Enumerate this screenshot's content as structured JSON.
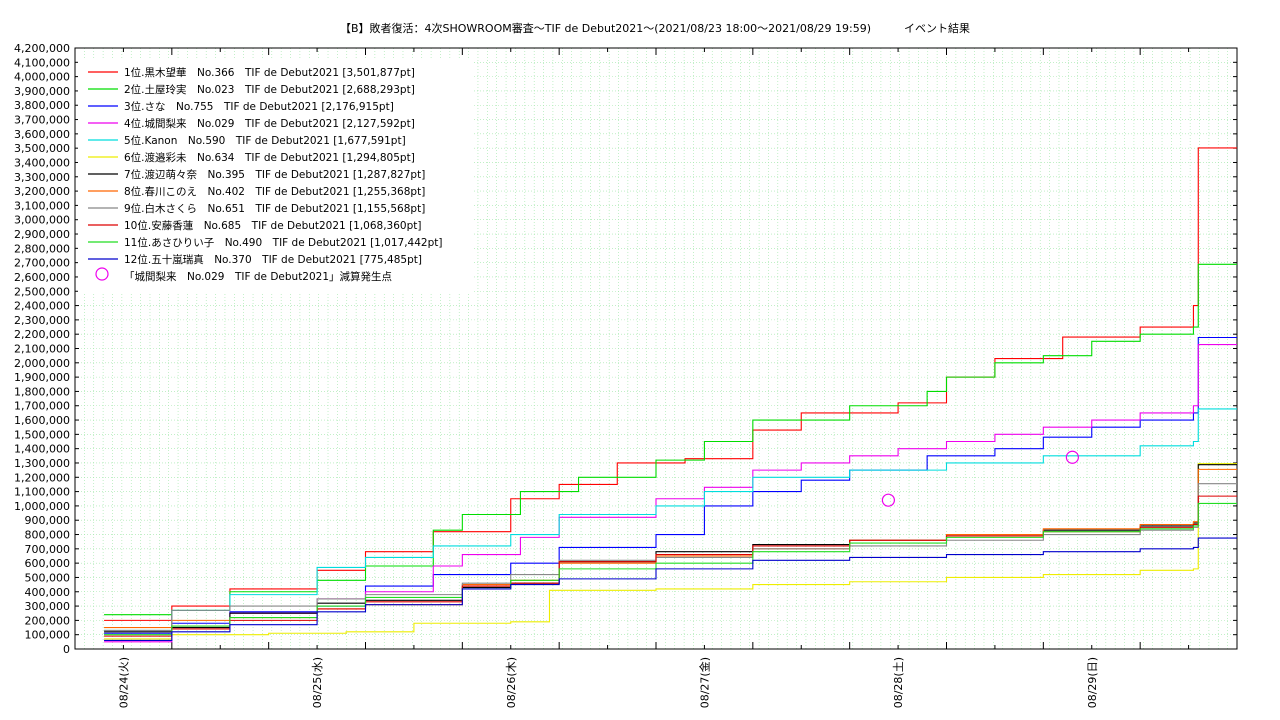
{
  "chart_data": {
    "type": "line",
    "title": "【B】敗者復活：4次SHOWROOM審査〜TIF de Debut2021〜(2021/08/23 18:00〜2021/08/29 19:59)　　　イベント結果",
    "xlabel": "",
    "ylabel": "",
    "xlim": [
      "2021-08-23 18:00",
      "2021-08-29 20:00"
    ],
    "ylim": [
      0,
      4200000
    ],
    "y_ticks": [
      "0",
      "100,000",
      "200,000",
      "300,000",
      "400,000",
      "500,000",
      "600,000",
      "700,000",
      "800,000",
      "900,000",
      "1,000,000",
      "1,100,000",
      "1,200,000",
      "1,300,000",
      "1,400,000",
      "1,500,000",
      "1,600,000",
      "1,700,000",
      "1,800,000",
      "1,900,000",
      "2,000,000",
      "2,100,000",
      "2,200,000",
      "2,300,000",
      "2,400,000",
      "2,500,000",
      "2,600,000",
      "2,700,000",
      "2,800,000",
      "2,900,000",
      "3,000,000",
      "3,100,000",
      "3,200,000",
      "3,300,000",
      "3,400,000",
      "3,500,000",
      "3,600,000",
      "3,700,000",
      "3,800,000",
      "3,900,000",
      "4,000,000",
      "4,100,000",
      "4,200,000"
    ],
    "x_ticks": [
      "08/24(火)",
      "08/25(水)",
      "08/26(木)",
      "08/27(金)",
      "08/28(土)",
      "08/29(日)"
    ],
    "grid": true,
    "legend_position": "top-left",
    "series": [
      {
        "name": "1位.黒木望華　No.366　TIF de Debut2021 [3,501,877pt]",
        "color": "#ff0000",
        "points": [
          [
            0.3,
            200000
          ],
          [
            1.0,
            300000
          ],
          [
            1.6,
            420000
          ],
          [
            2.5,
            550000
          ],
          [
            3.0,
            680000
          ],
          [
            3.7,
            820000
          ],
          [
            4.5,
            1050000
          ],
          [
            5.0,
            1150000
          ],
          [
            5.6,
            1300000
          ],
          [
            6.3,
            1330000
          ],
          [
            7.0,
            1530000
          ],
          [
            7.5,
            1650000
          ],
          [
            8.5,
            1720000
          ],
          [
            9.0,
            1900000
          ],
          [
            9.5,
            2030000
          ],
          [
            10.2,
            2180000
          ],
          [
            11.0,
            2250000
          ],
          [
            11.55,
            2400000
          ],
          [
            11.6,
            3501877
          ]
        ]
      },
      {
        "name": "2位.土屋玲実　No.023　TIF de Debut2021 [2,688,293pt]",
        "color": "#00dd00",
        "points": [
          [
            0.3,
            240000
          ],
          [
            1.0,
            270000
          ],
          [
            1.6,
            400000
          ],
          [
            2.5,
            480000
          ],
          [
            3.0,
            580000
          ],
          [
            3.7,
            830000
          ],
          [
            4.0,
            940000
          ],
          [
            4.6,
            1100000
          ],
          [
            5.2,
            1200000
          ],
          [
            6.0,
            1320000
          ],
          [
            6.5,
            1450000
          ],
          [
            7.0,
            1600000
          ],
          [
            8.0,
            1700000
          ],
          [
            8.8,
            1800000
          ],
          [
            9.0,
            1900000
          ],
          [
            9.5,
            2000000
          ],
          [
            10.0,
            2050000
          ],
          [
            10.5,
            2150000
          ],
          [
            11.0,
            2200000
          ],
          [
            11.55,
            2250000
          ],
          [
            11.6,
            2688293
          ]
        ]
      },
      {
        "name": "3位.さな　No.755　TIF de Debut2021 [2,176,915pt]",
        "color": "#0000ff",
        "points": [
          [
            0.3,
            110000
          ],
          [
            1.0,
            180000
          ],
          [
            1.6,
            260000
          ],
          [
            2.5,
            300000
          ],
          [
            3.0,
            440000
          ],
          [
            3.7,
            520000
          ],
          [
            4.5,
            600000
          ],
          [
            5.0,
            710000
          ],
          [
            6.0,
            800000
          ],
          [
            6.5,
            1000000
          ],
          [
            7.0,
            1100000
          ],
          [
            7.5,
            1180000
          ],
          [
            8.0,
            1250000
          ],
          [
            8.8,
            1350000
          ],
          [
            9.5,
            1400000
          ],
          [
            10.0,
            1480000
          ],
          [
            10.5,
            1550000
          ],
          [
            11.0,
            1600000
          ],
          [
            11.55,
            1650000
          ],
          [
            11.6,
            2176915
          ]
        ]
      },
      {
        "name": "4位.城間梨来　No.029　TIF de Debut2021 [2,127,592pt]",
        "color": "#ee00ee",
        "points": [
          [
            0.3,
            50000
          ],
          [
            1.0,
            160000
          ],
          [
            1.6,
            250000
          ],
          [
            2.5,
            350000
          ],
          [
            3.0,
            400000
          ],
          [
            3.7,
            580000
          ],
          [
            4.0,
            660000
          ],
          [
            4.6,
            780000
          ],
          [
            5.0,
            920000
          ],
          [
            6.0,
            1050000
          ],
          [
            6.5,
            1130000
          ],
          [
            7.0,
            1250000
          ],
          [
            7.5,
            1300000
          ],
          [
            8.0,
            1350000
          ],
          [
            8.5,
            1400000
          ],
          [
            9.0,
            1450000
          ],
          [
            9.5,
            1500000
          ],
          [
            10.0,
            1550000
          ],
          [
            10.5,
            1600000
          ],
          [
            11.0,
            1650000
          ],
          [
            11.55,
            1700000
          ],
          [
            11.6,
            2127592
          ]
        ]
      },
      {
        "name": "5位.Kanon　No.590　TIF de Debut2021 [1,677,591pt]",
        "color": "#00dddd",
        "points": [
          [
            0.3,
            130000
          ],
          [
            1.0,
            270000
          ],
          [
            1.6,
            380000
          ],
          [
            2.5,
            570000
          ],
          [
            3.0,
            640000
          ],
          [
            3.7,
            720000
          ],
          [
            4.5,
            800000
          ],
          [
            5.0,
            940000
          ],
          [
            6.0,
            1000000
          ],
          [
            6.5,
            1100000
          ],
          [
            7.0,
            1200000
          ],
          [
            8.0,
            1250000
          ],
          [
            9.0,
            1300000
          ],
          [
            10.0,
            1350000
          ],
          [
            11.0,
            1420000
          ],
          [
            11.55,
            1450000
          ],
          [
            11.6,
            1677591
          ]
        ]
      },
      {
        "name": "6位.渡邉彩未　No.634　TIF de Debut2021 [1,294,805pt]",
        "color": "#eeee00",
        "points": [
          [
            0.3,
            70000
          ],
          [
            1.0,
            100000
          ],
          [
            2.0,
            110000
          ],
          [
            2.8,
            120000
          ],
          [
            3.5,
            180000
          ],
          [
            4.5,
            190000
          ],
          [
            4.9,
            410000
          ],
          [
            6.0,
            420000
          ],
          [
            7.0,
            450000
          ],
          [
            8.0,
            470000
          ],
          [
            9.0,
            500000
          ],
          [
            10.0,
            520000
          ],
          [
            11.0,
            550000
          ],
          [
            11.55,
            560000
          ],
          [
            11.6,
            1294805
          ]
        ]
      },
      {
        "name": "7位.渡辺萌々奈　No.395　TIF de Debut2021 [1,287,827pt]",
        "color": "#000000",
        "points": [
          [
            0.3,
            120000
          ],
          [
            1.0,
            150000
          ],
          [
            1.6,
            250000
          ],
          [
            2.5,
            320000
          ],
          [
            3.0,
            340000
          ],
          [
            4.0,
            430000
          ],
          [
            4.5,
            460000
          ],
          [
            5.0,
            610000
          ],
          [
            6.0,
            680000
          ],
          [
            7.0,
            730000
          ],
          [
            8.0,
            760000
          ],
          [
            9.0,
            800000
          ],
          [
            10.0,
            830000
          ],
          [
            11.0,
            860000
          ],
          [
            11.55,
            880000
          ],
          [
            11.6,
            1287827
          ]
        ]
      },
      {
        "name": "8位.春川このえ　No.402　TIF de Debut2021 [1,255,368pt]",
        "color": "#ff6600",
        "points": [
          [
            0.3,
            150000
          ],
          [
            1.0,
            200000
          ],
          [
            1.6,
            220000
          ],
          [
            2.5,
            280000
          ],
          [
            3.0,
            310000
          ],
          [
            4.0,
            450000
          ],
          [
            4.5,
            480000
          ],
          [
            5.0,
            600000
          ],
          [
            6.0,
            650000
          ],
          [
            7.0,
            700000
          ],
          [
            8.0,
            760000
          ],
          [
            9.0,
            800000
          ],
          [
            10.0,
            840000
          ],
          [
            11.0,
            870000
          ],
          [
            11.55,
            890000
          ],
          [
            11.6,
            1255368
          ]
        ]
      },
      {
        "name": "9位.白木さくら　No.651　TIF de Debut2021 [1,155,568pt]",
        "color": "#888888",
        "points": [
          [
            0.3,
            130000
          ],
          [
            1.0,
            270000
          ],
          [
            1.6,
            300000
          ],
          [
            2.5,
            350000
          ],
          [
            3.0,
            380000
          ],
          [
            4.0,
            460000
          ],
          [
            4.5,
            520000
          ],
          [
            5.0,
            620000
          ],
          [
            6.0,
            640000
          ],
          [
            7.0,
            700000
          ],
          [
            8.0,
            720000
          ],
          [
            9.0,
            760000
          ],
          [
            10.0,
            800000
          ],
          [
            11.0,
            830000
          ],
          [
            11.55,
            850000
          ],
          [
            11.6,
            1155568
          ]
        ]
      },
      {
        "name": "10位.安藤香蓮　No.685　TIF de Debut2021 [1,068,360pt]",
        "color": "#dd0000",
        "points": [
          [
            0.3,
            90000
          ],
          [
            1.0,
            140000
          ],
          [
            1.6,
            200000
          ],
          [
            2.5,
            280000
          ],
          [
            3.0,
            330000
          ],
          [
            4.0,
            440000
          ],
          [
            4.5,
            460000
          ],
          [
            5.0,
            610000
          ],
          [
            6.0,
            660000
          ],
          [
            7.0,
            720000
          ],
          [
            8.0,
            760000
          ],
          [
            9.0,
            790000
          ],
          [
            10.0,
            820000
          ],
          [
            11.0,
            850000
          ],
          [
            11.55,
            870000
          ],
          [
            11.6,
            1068360
          ]
        ]
      },
      {
        "name": "11位.あさひりい子　No.490　TIF de Debut2021 [1,017,442pt]",
        "color": "#22dd22",
        "points": [
          [
            0.3,
            100000
          ],
          [
            1.0,
            160000
          ],
          [
            1.6,
            220000
          ],
          [
            2.5,
            300000
          ],
          [
            3.0,
            360000
          ],
          [
            4.0,
            420000
          ],
          [
            4.5,
            480000
          ],
          [
            5.0,
            560000
          ],
          [
            6.0,
            600000
          ],
          [
            7.0,
            680000
          ],
          [
            8.0,
            740000
          ],
          [
            9.0,
            780000
          ],
          [
            10.0,
            820000
          ],
          [
            11.0,
            840000
          ],
          [
            11.55,
            860000
          ],
          [
            11.6,
            1017442
          ]
        ]
      },
      {
        "name": "12位.五十嵐瑞真　No.370　TIF de Debut2021 [775,485pt]",
        "color": "#0000cc",
        "points": [
          [
            0.3,
            60000
          ],
          [
            1.0,
            120000
          ],
          [
            1.6,
            170000
          ],
          [
            2.5,
            260000
          ],
          [
            3.0,
            310000
          ],
          [
            4.0,
            420000
          ],
          [
            4.5,
            450000
          ],
          [
            5.0,
            490000
          ],
          [
            6.0,
            560000
          ],
          [
            7.0,
            620000
          ],
          [
            8.0,
            640000
          ],
          [
            9.0,
            660000
          ],
          [
            10.0,
            680000
          ],
          [
            11.0,
            700000
          ],
          [
            11.55,
            710000
          ],
          [
            11.6,
            775485
          ]
        ]
      }
    ],
    "markers": {
      "name": "「城間梨来　No.029　TIF de Debut2021」減算発生点",
      "color": "#ee00ee",
      "points": [
        [
          8.4,
          1040000
        ],
        [
          10.3,
          1340000
        ]
      ]
    },
    "x_points_scale_note": ""
  }
}
